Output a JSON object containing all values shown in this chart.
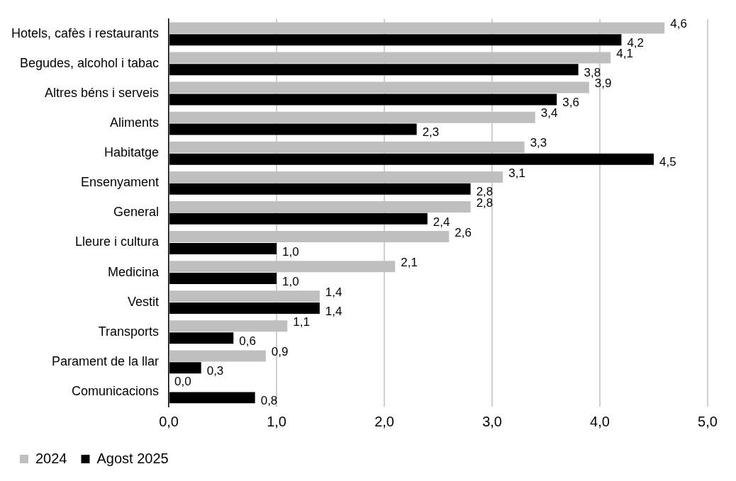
{
  "chart_data": {
    "type": "bar",
    "orientation": "horizontal",
    "categories": [
      "Hotels, cafès i restaurants",
      "Begudes, alcohol i tabac",
      "Altres béns i serveis",
      "Aliments",
      "Habitatge",
      "Ensenyament",
      "General",
      "Lleure i cultura",
      "Medicina",
      "Vestit",
      "Transports",
      "Parament de la llar",
      "Comunicacions"
    ],
    "series": [
      {
        "name": "2024",
        "color": "#bfbfbf",
        "values": [
          4.6,
          4.1,
          3.9,
          3.4,
          3.3,
          3.1,
          2.8,
          2.6,
          2.1,
          1.4,
          1.1,
          0.9,
          0.0
        ],
        "value_labels": [
          "4,6",
          "4,1",
          "3,9",
          "3,4",
          "3,3",
          "3,1",
          "2,8",
          "2,6",
          "2,1",
          "1,4",
          "1,1",
          "0,9",
          "0,0"
        ]
      },
      {
        "name": "Agost 2025",
        "color": "#000000",
        "values": [
          4.2,
          3.8,
          3.6,
          2.3,
          4.5,
          2.8,
          2.4,
          1.0,
          1.0,
          1.4,
          0.6,
          0.3,
          0.8
        ],
        "value_labels": [
          "4,2",
          "3,8",
          "3,6",
          "2,3",
          "4,5",
          "2,8",
          "2,4",
          "1,0",
          "1,0",
          "1,4",
          "0,6",
          "0,3",
          "0,8"
        ]
      }
    ],
    "xlim": [
      0,
      5
    ],
    "xticks": [
      {
        "value": 0,
        "label": "0,0"
      },
      {
        "value": 1,
        "label": "1,0"
      },
      {
        "value": 2,
        "label": "2,0"
      },
      {
        "value": 3,
        "label": "3,0"
      },
      {
        "value": 4,
        "label": "4,0"
      },
      {
        "value": 5,
        "label": "5,0"
      }
    ],
    "grid": "x",
    "legend": "bottom left"
  }
}
